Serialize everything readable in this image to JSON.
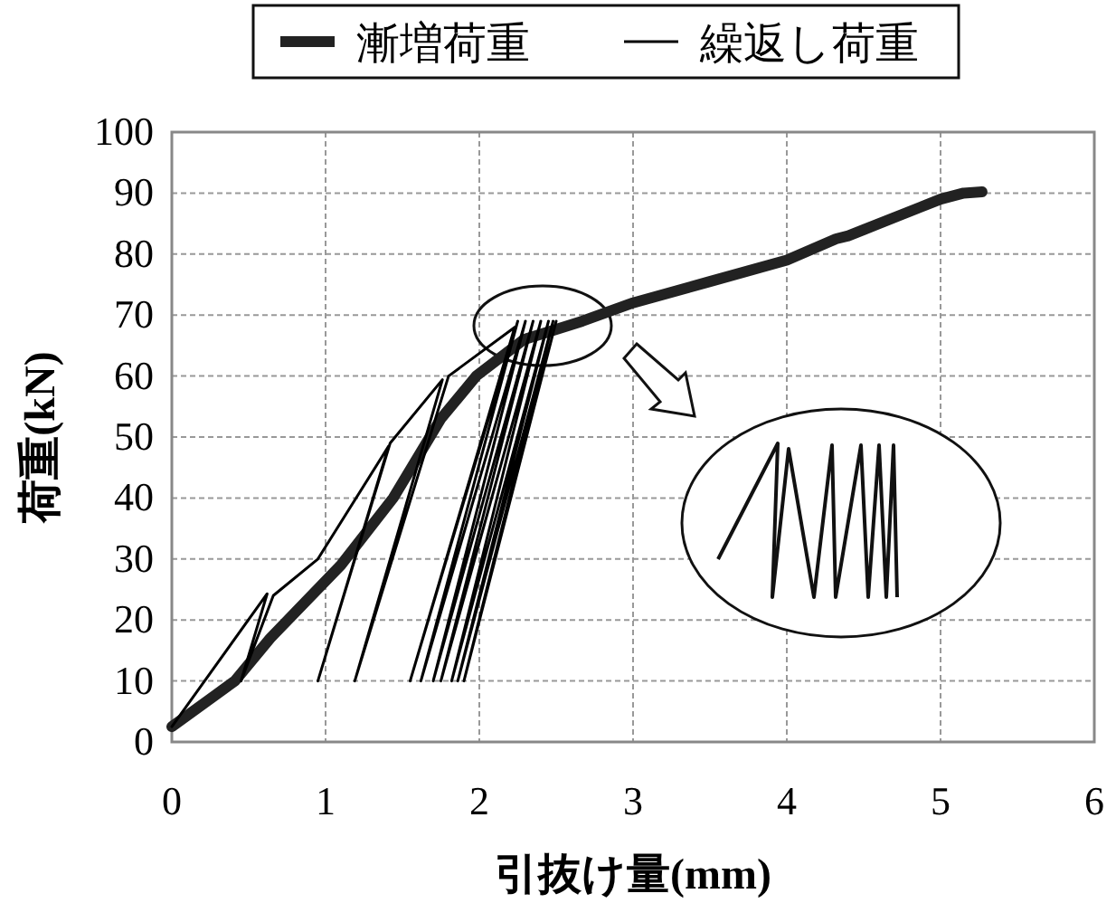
{
  "chart_data": {
    "type": "line",
    "xlabel": "引抜け量(mm)",
    "ylabel": "荷重(kN)",
    "xlim": [
      0,
      6
    ],
    "xticks": [
      0,
      1,
      2,
      3,
      4,
      5,
      6
    ],
    "ylim": [
      0,
      100
    ],
    "yticks": [
      0,
      10,
      20,
      30,
      40,
      50,
      60,
      70,
      80,
      90,
      100
    ],
    "grid": true,
    "legend": "top",
    "series": [
      {
        "name": "漸増荷重",
        "color": "#222222",
        "x": [
          0,
          0.41,
          0.64,
          1.1,
          1.44,
          1.75,
          1.98,
          2.29,
          2.67,
          3.0,
          3.5,
          4.0,
          4.32,
          4.4,
          4.5,
          4.75,
          5.0,
          5.15,
          5.27
        ],
        "values": [
          2.5,
          10,
          17,
          29,
          40,
          53,
          60,
          66,
          69,
          72,
          75.5,
          79,
          82.5,
          83,
          84,
          86.5,
          89,
          90,
          90.2
        ]
      },
      {
        "name": "繰返し荷重",
        "color": "#000000",
        "x": [
          0,
          0.62,
          0.45,
          0.66,
          0.95,
          1.41,
          0.95,
          1.42,
          1.76,
          1.19,
          1.8,
          2.23,
          1.55,
          2.25,
          1.62,
          2.3,
          1.7,
          2.35,
          1.75,
          2.4,
          1.82,
          2.45,
          1.86,
          2.48,
          1.9,
          2.5
        ],
        "values": [
          2.5,
          24.3,
          10,
          24,
          30,
          48.5,
          10,
          49,
          59.4,
          10,
          60,
          68,
          10,
          69,
          10,
          69,
          10,
          69,
          10,
          69,
          10,
          69,
          10,
          69,
          10,
          69
        ]
      }
    ]
  }
}
